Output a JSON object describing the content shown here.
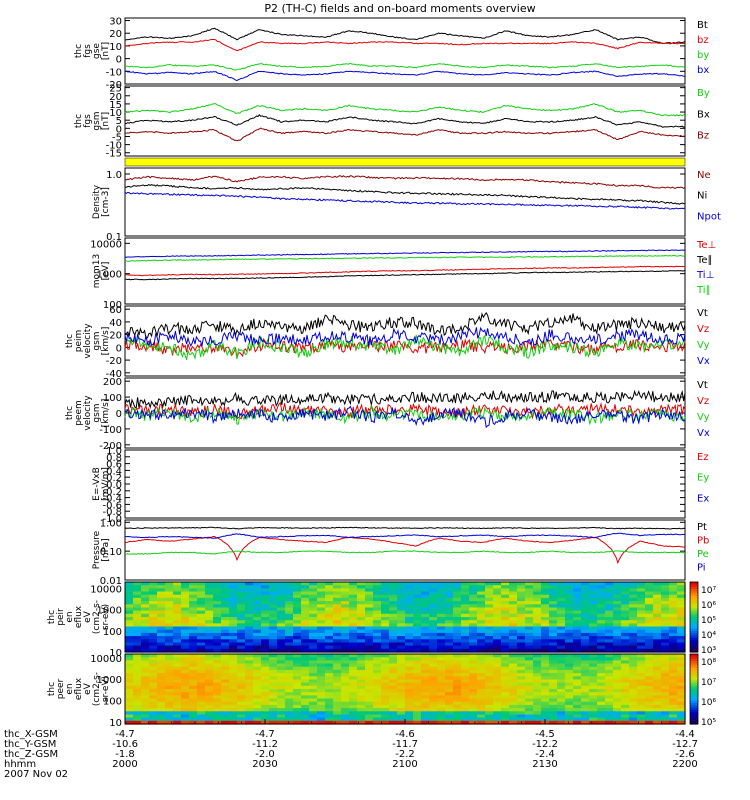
{
  "title": "P2 (TH-C) fields and on-board moments overview",
  "colors": {
    "black": "#000000",
    "red": "#e00000",
    "green": "#10d010",
    "blue": "#0000dd",
    "darkred": "#8b0000",
    "yellow": "#ffff00"
  },
  "chart_data": [
    {
      "type": "line",
      "panel_id": "fgs_gse",
      "ylabel": [
        "thc",
        "fgs",
        "gse",
        "[nT]"
      ],
      "ylim": [
        -20,
        32
      ],
      "ticks": [
        "30",
        "20",
        "10",
        "0",
        "-10",
        "-20"
      ],
      "series": [
        {
          "name": "Bt",
          "color": "black",
          "values": [
            15,
            17,
            16,
            18,
            24,
            15,
            23,
            19,
            18,
            17,
            22,
            20,
            17,
            15,
            20,
            18,
            16,
            22,
            18,
            17,
            19,
            23,
            15,
            17,
            12,
            13
          ]
        },
        {
          "name": "bz",
          "color": "red",
          "values": [
            10,
            12,
            13,
            13,
            15,
            6,
            13,
            12,
            12,
            13,
            12,
            13,
            13,
            12,
            12,
            11,
            12,
            12,
            12,
            12,
            13,
            12,
            8,
            13,
            12,
            12
          ]
        },
        {
          "name": "by",
          "color": "green",
          "values": [
            -6,
            -7,
            -5,
            -6,
            -5,
            -9,
            -4,
            -6,
            -7,
            -6,
            -4,
            -6,
            -6,
            -7,
            -4,
            -6,
            -7,
            -5,
            -6,
            -7,
            -6,
            -4,
            -7,
            -6,
            -5,
            -7
          ]
        },
        {
          "name": "bx",
          "color": "blue",
          "values": [
            -10,
            -12,
            -11,
            -12,
            -10,
            -17,
            -10,
            -12,
            -13,
            -12,
            -10,
            -11,
            -12,
            -13,
            -10,
            -12,
            -13,
            -11,
            -12,
            -13,
            -11,
            -10,
            -14,
            -12,
            -12,
            -14
          ]
        }
      ]
    },
    {
      "type": "line",
      "panel_id": "fgs_gsm",
      "ylabel": [
        "thc",
        "fgs",
        "gsm",
        "[nT]"
      ],
      "ylim": [
        -17,
        26
      ],
      "ticks": [
        "25",
        "20",
        "15",
        "10",
        "5",
        "0",
        "-5",
        "-10",
        "-15"
      ],
      "series": [
        {
          "name": "By",
          "color": "green",
          "values": [
            10,
            11,
            10,
            12,
            15,
            9,
            14,
            11,
            12,
            11,
            14,
            12,
            11,
            10,
            13,
            11,
            10,
            14,
            12,
            11,
            12,
            15,
            10,
            11,
            8,
            8
          ]
        },
        {
          "name": "Bx",
          "color": "black",
          "values": [
            3,
            5,
            4,
            5,
            7,
            2,
            8,
            4,
            5,
            4,
            7,
            5,
            4,
            3,
            6,
            4,
            3,
            6,
            4,
            4,
            5,
            7,
            2,
            4,
            1,
            1
          ]
        },
        {
          "name": "Bz",
          "color": "darkred",
          "values": [
            -3,
            -2,
            -3,
            -2,
            -1,
            -8,
            0,
            -3,
            -2,
            -3,
            -1,
            -2,
            -3,
            -4,
            -1,
            -3,
            -3,
            -2,
            -3,
            -3,
            -2,
            -1,
            -7,
            -2,
            -4,
            -5
          ]
        }
      ]
    },
    {
      "type": "line",
      "panel_id": "density",
      "ylabel": [
        "Density",
        "[cm-3]"
      ],
      "yscale": "log",
      "ylim": [
        0.1,
        1.25
      ],
      "ticks": [
        "1.0",
        "0.1"
      ],
      "series": [
        {
          "name": "Ne",
          "color": "darkred",
          "values": [
            0.8,
            0.9,
            0.85,
            0.8,
            0.92,
            0.75,
            0.88,
            0.9,
            0.85,
            0.9,
            0.92,
            0.88,
            0.85,
            0.86,
            0.85,
            0.84,
            0.8,
            0.82,
            0.8,
            0.75,
            0.72,
            0.7,
            0.65,
            0.65,
            0.6,
            0.6
          ]
        },
        {
          "name": "Ni",
          "color": "black",
          "values": [
            0.62,
            0.66,
            0.64,
            0.6,
            0.58,
            0.6,
            0.56,
            0.58,
            0.6,
            0.57,
            0.54,
            0.52,
            0.5,
            0.49,
            0.48,
            0.47,
            0.46,
            0.45,
            0.43,
            0.42,
            0.4,
            0.39,
            0.38,
            0.37,
            0.35,
            0.33
          ]
        },
        {
          "name": "Npot",
          "color": "blue",
          "values": [
            0.5,
            0.48,
            0.47,
            0.46,
            0.45,
            0.44,
            0.42,
            0.4,
            0.39,
            0.38,
            0.37,
            0.36,
            0.35,
            0.34,
            0.34,
            0.33,
            0.33,
            0.32,
            0.32,
            0.31,
            0.31,
            0.3,
            0.3,
            0.29,
            0.28,
            0.28
          ]
        }
      ]
    },
    {
      "type": "line",
      "panel_id": "temperature",
      "ylabel": [
        "mom13",
        "[eV]"
      ],
      "yscale": "log",
      "ylim": [
        100,
        15000
      ],
      "ticks": [
        "10000",
        "1000",
        "100"
      ],
      "series": [
        {
          "name": "Te⊥",
          "color": "red",
          "values": [
            900,
            880,
            920,
            950,
            940,
            960,
            980,
            1000,
            1050,
            1100,
            1150,
            1200,
            1250,
            1250,
            1300,
            1350,
            1400,
            1450,
            1500,
            1550,
            1550,
            1600,
            1650,
            1700,
            1700,
            1750
          ]
        },
        {
          "name": "Te∥",
          "color": "black",
          "values": [
            650,
            640,
            670,
            700,
            690,
            700,
            720,
            740,
            770,
            800,
            840,
            870,
            900,
            920,
            950,
            980,
            1000,
            1050,
            1080,
            1100,
            1120,
            1150,
            1180,
            1200,
            1220,
            1250
          ]
        },
        {
          "name": "Ti⊥",
          "color": "blue",
          "values": [
            3500,
            3600,
            3800,
            3800,
            3900,
            4000,
            4100,
            4200,
            4300,
            4400,
            4500,
            4600,
            4700,
            4800,
            4900,
            5000,
            5100,
            5200,
            5300,
            5400,
            5500,
            5600,
            5700,
            5800,
            5900,
            6000
          ]
        },
        {
          "name": "Ti∥",
          "color": "green",
          "values": [
            2600,
            2700,
            2800,
            2800,
            2900,
            3000,
            3000,
            3100,
            3100,
            3200,
            3200,
            3300,
            3300,
            3400,
            3400,
            3500,
            3500,
            3500,
            3600,
            3600,
            3700,
            3700,
            3800,
            3800,
            3900,
            3900
          ]
        }
      ]
    },
    {
      "type": "line",
      "panel_id": "peim_velocity",
      "ylabel": [
        "thc",
        "peim",
        "velocity",
        "gsm",
        "[km/s]"
      ],
      "ylim": [
        -45,
        65
      ],
      "ticks": [
        "60",
        "40",
        "20",
        "0",
        "-20",
        "-40"
      ],
      "series": [
        {
          "name": "Vt",
          "color": "black",
          "values": [
            25,
            22,
            30,
            28,
            35,
            25,
            40,
            30,
            28,
            45,
            35,
            30,
            40,
            38,
            25,
            30,
            50,
            35,
            30,
            40,
            45,
            30,
            35,
            40,
            30,
            32
          ]
        },
        {
          "name": "Vz",
          "color": "red",
          "values": [
            5,
            3,
            -5,
            2,
            0,
            -8,
            4,
            3,
            -2,
            5,
            0,
            2,
            3,
            -3,
            1,
            4,
            0,
            -2,
            3,
            5,
            0,
            -3,
            2,
            4,
            1,
            3
          ]
        },
        {
          "name": "Vy",
          "color": "green",
          "values": [
            10,
            5,
            0,
            -15,
            5,
            -10,
            8,
            0,
            -10,
            5,
            10,
            0,
            -5,
            10,
            0,
            -5,
            10,
            0,
            -8,
            5,
            0,
            -10,
            8,
            0,
            5,
            2
          ]
        },
        {
          "name": "Vx",
          "color": "blue",
          "values": [
            15,
            10,
            20,
            8,
            12,
            18,
            10,
            15,
            12,
            20,
            15,
            10,
            20,
            15,
            12,
            18,
            25,
            15,
            10,
            20,
            15,
            12,
            18,
            20,
            10,
            15
          ]
        }
      ]
    },
    {
      "type": "line",
      "panel_id": "peem_velocity",
      "ylabel": [
        "thc",
        "peem",
        "velocity",
        "gsm",
        "[km/s]"
      ],
      "ylim": [
        -220,
        220
      ],
      "ticks": [
        "200",
        "100",
        "0",
        "-100",
        "-200"
      ],
      "series": [
        {
          "name": "Vt",
          "color": "black",
          "values": [
            60,
            70,
            65,
            80,
            75,
            90,
            70,
            85,
            80,
            100,
            90,
            85,
            95,
            100,
            90,
            95,
            110,
            100,
            95,
            105,
            110,
            100,
            95,
            105,
            100,
            100
          ]
        },
        {
          "name": "Vz",
          "color": "red",
          "values": [
            20,
            10,
            30,
            0,
            25,
            -10,
            20,
            30,
            10,
            20,
            0,
            30,
            15,
            20,
            10,
            -5,
            30,
            20,
            0,
            25,
            10,
            30,
            20,
            5,
            15,
            20
          ]
        },
        {
          "name": "Vy",
          "color": "green",
          "values": [
            0,
            -20,
            10,
            -30,
            5,
            -40,
            10,
            -20,
            0,
            -10,
            -30,
            5,
            -20,
            0,
            -40,
            -10,
            5,
            -30,
            -20,
            0,
            -10,
            -40,
            0,
            -20,
            -10,
            -30
          ]
        },
        {
          "name": "Vx",
          "color": "blue",
          "values": [
            -10,
            0,
            -20,
            10,
            -30,
            0,
            -10,
            -40,
            0,
            -20,
            10,
            -30,
            0,
            -50,
            -10,
            0,
            -60,
            -20,
            0,
            -30,
            -50,
            0,
            -20,
            -40,
            0,
            -20
          ]
        }
      ]
    },
    {
      "type": "line",
      "panel_id": "efield",
      "ylabel": [
        "E=-VxB",
        "[mV/m]"
      ],
      "ylim": [
        -1.0,
        1.0
      ],
      "ticks": [
        "1.0",
        "0.8",
        "0.6",
        "0.4",
        "0.2",
        "0.0",
        "-0.2",
        "-0.4",
        "-0.6",
        "-0.8",
        "-1.0"
      ],
      "series": [
        {
          "name": "Ez",
          "color": "red",
          "values": []
        },
        {
          "name": "Ey",
          "color": "green",
          "values": []
        },
        {
          "name": "Ex",
          "color": "blue",
          "values": []
        }
      ]
    },
    {
      "type": "line",
      "panel_id": "pressure",
      "ylabel": [
        "Pressure",
        "[nPa]"
      ],
      "yscale": "log",
      "ylim": [
        0.01,
        1.2
      ],
      "ticks": [
        "1.00",
        "0.10",
        "0.01"
      ],
      "series": [
        {
          "name": "Pt",
          "color": "black",
          "values": [
            0.62,
            0.63,
            0.64,
            0.64,
            0.66,
            0.6,
            0.65,
            0.64,
            0.63,
            0.64,
            0.66,
            0.64,
            0.63,
            0.62,
            0.64,
            0.63,
            0.62,
            0.64,
            0.62,
            0.62,
            0.63,
            0.65,
            0.6,
            0.62,
            0.6,
            0.6
          ]
        },
        {
          "name": "Pb",
          "color": "red",
          "values": [
            0.2,
            0.25,
            0.22,
            0.26,
            0.32,
            0.05,
            0.3,
            0.25,
            0.22,
            0.2,
            0.3,
            0.26,
            0.2,
            0.15,
            0.28,
            0.22,
            0.2,
            0.28,
            0.22,
            0.2,
            0.24,
            0.3,
            0.04,
            0.22,
            0.15,
            0.14
          ]
        },
        {
          "name": "Pe",
          "color": "green",
          "values": [
            0.08,
            0.08,
            0.09,
            0.09,
            0.08,
            0.1,
            0.09,
            0.09,
            0.1,
            0.1,
            0.09,
            0.09,
            0.1,
            0.1,
            0.09,
            0.09,
            0.1,
            0.09,
            0.09,
            0.1,
            0.09,
            0.09,
            0.1,
            0.09,
            0.09,
            0.09
          ]
        },
        {
          "name": "Pi",
          "color": "blue",
          "values": [
            0.32,
            0.3,
            0.32,
            0.3,
            0.28,
            0.4,
            0.3,
            0.32,
            0.34,
            0.35,
            0.3,
            0.32,
            0.34,
            0.36,
            0.32,
            0.34,
            0.36,
            0.32,
            0.35,
            0.36,
            0.33,
            0.3,
            0.42,
            0.35,
            0.38,
            0.38
          ]
        }
      ]
    },
    {
      "type": "heatmap",
      "panel_id": "peir_spectrogram",
      "ylabel": [
        "thc",
        "peir",
        "en",
        "eflux",
        "eV",
        "(cm2-s-",
        "sr-eV)"
      ],
      "yscale": "log",
      "ylim": [
        10,
        20000
      ],
      "ticks": [
        "10000",
        "1000",
        "100",
        "10"
      ],
      "colorbar": {
        "ticks": [
          "10⁷",
          "10⁶",
          "10⁵",
          "10⁴",
          "10³"
        ],
        "range_exp": [
          3,
          7.5
        ]
      }
    },
    {
      "type": "heatmap",
      "panel_id": "peer_spectrogram",
      "ylabel": [
        "thc",
        "peer",
        "en",
        "eflux",
        "eV",
        "(cm2-s-",
        "sr-eV)"
      ],
      "yscale": "log",
      "ylim": [
        8,
        15000
      ],
      "ticks": [
        "10000",
        "1000",
        "100",
        "10"
      ],
      "colorbar": {
        "ticks": [
          "10⁸",
          "10⁷",
          "10⁶",
          "10⁵"
        ],
        "range_exp": [
          4.5,
          8.3
        ]
      }
    }
  ],
  "footer": {
    "row_labels": [
      "thc_X-GSM",
      "thc_Y-GSM",
      "thc_Z-GSM",
      "hhmm",
      "2007 Nov 02"
    ],
    "columns": [
      {
        "x_gsm": "-4.7",
        "y_gsm": "-10.6",
        "z_gsm": "-1.8",
        "hhmm": "2000"
      },
      {
        "x_gsm": "-4.7",
        "y_gsm": "-11.2",
        "z_gsm": "-2.0",
        "hhmm": "2030"
      },
      {
        "x_gsm": "-4.6",
        "y_gsm": "-11.7",
        "z_gsm": "-2.2",
        "hhmm": "2100"
      },
      {
        "x_gsm": "-4.5",
        "y_gsm": "-12.2",
        "z_gsm": "-2.4",
        "hhmm": "2130"
      },
      {
        "x_gsm": "-4.4",
        "y_gsm": "-12.7",
        "z_gsm": "-2.6",
        "hhmm": "2200"
      }
    ]
  }
}
